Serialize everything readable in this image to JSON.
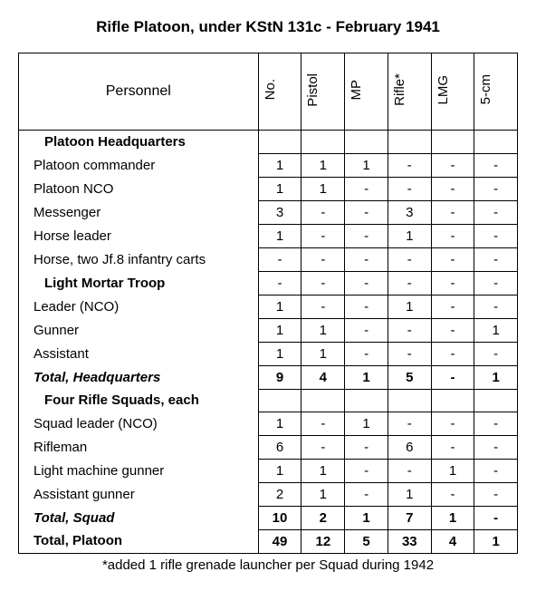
{
  "title": "Rifle Platoon, under KStN 131c - February 1941",
  "personnel_header": "Personnel",
  "columns": [
    "No.",
    "Pistol",
    "MP",
    "Rifle*",
    "LMG",
    "5-cm"
  ],
  "rows": [
    {
      "label": "Platoon Headquarters",
      "style": "section",
      "cells": [
        "",
        "",
        "",
        "",
        "",
        ""
      ]
    },
    {
      "label": "Platoon commander",
      "style": "plain",
      "cells": [
        "1",
        "1",
        "1",
        "-",
        "-",
        "-"
      ]
    },
    {
      "label": "Platoon NCO",
      "style": "plain",
      "cells": [
        "1",
        "1",
        "-",
        "-",
        "-",
        "-"
      ]
    },
    {
      "label": "Messenger",
      "style": "plain",
      "cells": [
        "3",
        "-",
        "-",
        "3",
        "-",
        "-"
      ]
    },
    {
      "label": "Horse leader",
      "style": "plain",
      "cells": [
        "1",
        "-",
        "-",
        "1",
        "-",
        "-"
      ]
    },
    {
      "label": "Horse, two Jf.8 infantry carts",
      "style": "plain",
      "cells": [
        "-",
        "-",
        "-",
        "-",
        "-",
        "-"
      ]
    },
    {
      "label": "Light Mortar Troop",
      "style": "section",
      "cells": [
        "-",
        "-",
        "-",
        "-",
        "-",
        "-"
      ]
    },
    {
      "label": "Leader (NCO)",
      "style": "plain",
      "cells": [
        "1",
        "-",
        "-",
        "1",
        "-",
        "-"
      ]
    },
    {
      "label": "Gunner",
      "style": "plain",
      "cells": [
        "1",
        "1",
        "-",
        "-",
        "-",
        "1"
      ]
    },
    {
      "label": "Assistant",
      "style": "plain",
      "cells": [
        "1",
        "1",
        "-",
        "-",
        "-",
        "-"
      ]
    },
    {
      "label": "Total, Headquarters",
      "style": "total",
      "cells": [
        "9",
        "4",
        "1",
        "5",
        "-",
        "1"
      ]
    },
    {
      "label": "Four Rifle Squads, each",
      "style": "section",
      "cells": [
        "",
        "",
        "",
        "",
        "",
        ""
      ]
    },
    {
      "label": "Squad leader (NCO)",
      "style": "plain",
      "cells": [
        "1",
        "-",
        "1",
        "-",
        "-",
        "-"
      ]
    },
    {
      "label": "Rifleman",
      "style": "plain",
      "cells": [
        "6",
        "-",
        "-",
        "6",
        "-",
        "-"
      ]
    },
    {
      "label": "Light machine gunner",
      "style": "plain",
      "cells": [
        "1",
        "1",
        "-",
        "-",
        "1",
        "-"
      ]
    },
    {
      "label": "Assistant gunner",
      "style": "plain",
      "cells": [
        "2",
        "1",
        "-",
        "1",
        "-",
        "-"
      ]
    },
    {
      "label": "Total, Squad",
      "style": "total",
      "cells": [
        "10",
        "2",
        "1",
        "7",
        "1",
        "-"
      ]
    },
    {
      "label": "Total, Platoon",
      "style": "grand",
      "cells": [
        "49",
        "12",
        "5",
        "33",
        "4",
        "1"
      ]
    }
  ],
  "footnote": "*added 1 rifle grenade launcher per Squad during 1942"
}
